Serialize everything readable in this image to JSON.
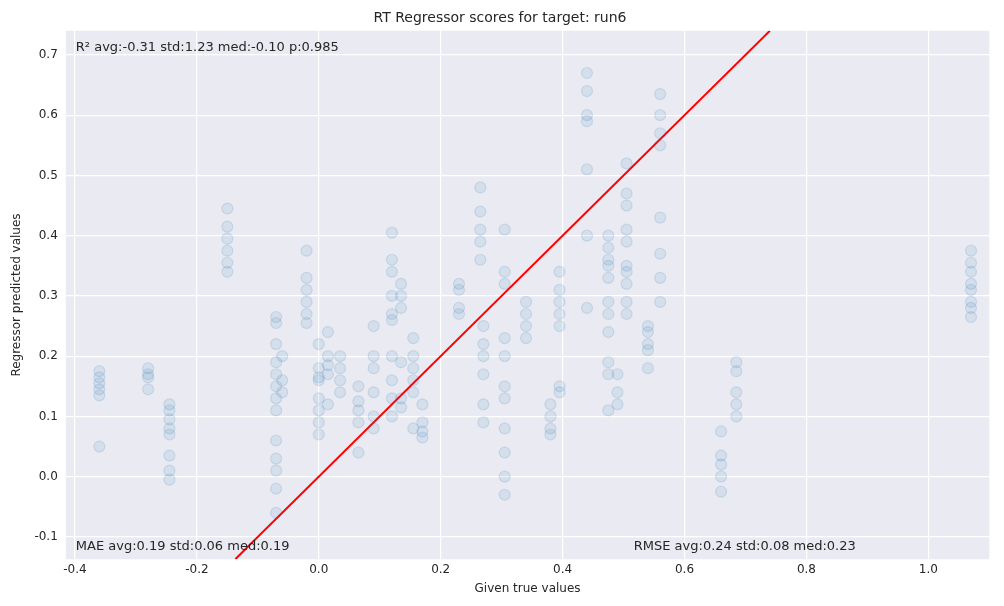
{
  "chart_data": {
    "type": "scatter",
    "title": "RT Regressor scores for target: run6",
    "xlabel": "Given true values",
    "ylabel": "Regressor predicted values",
    "xlim": [
      -0.415,
      1.1
    ],
    "ylim": [
      -0.137,
      0.74
    ],
    "xticks": [
      -0.4,
      -0.2,
      {
        "value": 0,
        "label": "0.0"
      },
      0.2,
      0.4,
      0.6,
      0.8,
      {
        "value": 1,
        "label": "1.0"
      }
    ],
    "yticks": [
      -0.1,
      {
        "value": 0,
        "label": "0.0"
      },
      0.1,
      0.2,
      0.3,
      0.4,
      0.5,
      0.6,
      0.7
    ],
    "grid": true,
    "legend": false,
    "annotations": [
      "R² avg:-0.31 std:1.23 med:-0.10 p:0.985",
      "MAE avg:0.19 std:0.06 med:0.19",
      "RMSE avg:0.24 std:0.08 med:0.23"
    ],
    "series": [
      {
        "type": "scatter",
        "marker": "circle",
        "color": "#1f77b4",
        "x": [
          -0.36,
          -0.36,
          -0.36,
          -0.36,
          -0.36,
          -0.36,
          -0.28,
          -0.28,
          -0.28,
          -0.28,
          -0.245,
          -0.245,
          -0.245,
          -0.245,
          -0.245,
          -0.245,
          -0.245,
          -0.245,
          -0.15,
          -0.15,
          -0.15,
          -0.15,
          -0.15,
          -0.15,
          -0.07,
          -0.07,
          -0.07,
          -0.07,
          -0.07,
          -0.07,
          -0.07,
          -0.07,
          -0.07,
          -0.07,
          -0.07,
          -0.07,
          -0.07,
          -0.06,
          -0.06,
          -0.06,
          -0.02,
          -0.02,
          -0.02,
          -0.02,
          -0.02,
          -0.02,
          0,
          0,
          0,
          0,
          0,
          0,
          0,
          0,
          0.015,
          0.015,
          0.015,
          0.015,
          0.015,
          0.035,
          0.035,
          0.035,
          0.035,
          0.065,
          0.065,
          0.065,
          0.065,
          0.065,
          0.09,
          0.09,
          0.09,
          0.09,
          0.09,
          0.09,
          0.12,
          0.12,
          0.12,
          0.12,
          0.12,
          0.12,
          0.12,
          0.12,
          0.12,
          0.12,
          0.135,
          0.135,
          0.135,
          0.135,
          0.135,
          0.135,
          0.155,
          0.155,
          0.155,
          0.155,
          0.155,
          0.155,
          0.17,
          0.17,
          0.17,
          0.17,
          0.23,
          0.23,
          0.23,
          0.23,
          0.265,
          0.265,
          0.265,
          0.265,
          0.265,
          0.27,
          0.27,
          0.27,
          0.27,
          0.27,
          0.27,
          0.305,
          0.305,
          0.305,
          0.305,
          0.305,
          0.305,
          0.305,
          0.305,
          0.305,
          0.305,
          0.305,
          0.34,
          0.34,
          0.34,
          0.34,
          0.38,
          0.38,
          0.38,
          0.38,
          0.395,
          0.395,
          0.395,
          0.395,
          0.395,
          0.395,
          0.395,
          0.44,
          0.44,
          0.44,
          0.44,
          0.44,
          0.44,
          0.44,
          0.475,
          0.475,
          0.475,
          0.475,
          0.475,
          0.475,
          0.475,
          0.475,
          0.475,
          0.475,
          0.475,
          0.49,
          0.49,
          0.49,
          0.505,
          0.505,
          0.505,
          0.505,
          0.505,
          0.505,
          0.505,
          0.505,
          0.505,
          0.505,
          0.54,
          0.54,
          0.54,
          0.54,
          0.54,
          0.56,
          0.56,
          0.56,
          0.56,
          0.56,
          0.56,
          0.56,
          0.56,
          0.66,
          0.66,
          0.66,
          0.66,
          0.66,
          0.685,
          0.685,
          0.685,
          0.685,
          0.685,
          1.07,
          1.07,
          1.07,
          1.07,
          1.07,
          1.07,
          1.07,
          1.07
        ],
        "values": [
          0.175,
          0.165,
          0.155,
          0.145,
          0.135,
          0.05,
          0.18,
          0.17,
          0.165,
          0.145,
          0.12,
          0.11,
          0.095,
          0.08,
          0.07,
          0.035,
          0.01,
          -0.005,
          0.445,
          0.415,
          0.395,
          0.375,
          0.355,
          0.34,
          0.265,
          0.255,
          0.22,
          0.19,
          0.17,
          0.15,
          0.13,
          0.11,
          0.06,
          0.03,
          0.01,
          -0.02,
          -0.06,
          0.2,
          0.16,
          0.14,
          0.375,
          0.33,
          0.31,
          0.29,
          0.27,
          0.255,
          0.22,
          0.18,
          0.165,
          0.16,
          0.13,
          0.11,
          0.09,
          0.07,
          0.24,
          0.2,
          0.185,
          0.17,
          0.12,
          0.2,
          0.18,
          0.16,
          0.14,
          0.15,
          0.125,
          0.11,
          0.09,
          0.04,
          0.25,
          0.2,
          0.18,
          0.14,
          0.1,
          0.08,
          0.405,
          0.36,
          0.34,
          0.3,
          0.27,
          0.26,
          0.2,
          0.16,
          0.13,
          0.1,
          0.32,
          0.3,
          0.28,
          0.19,
          0.13,
          0.115,
          0.23,
          0.2,
          0.18,
          0.16,
          0.14,
          0.08,
          0.12,
          0.09,
          0.075,
          0.065,
          0.32,
          0.31,
          0.28,
          0.27,
          0.48,
          0.44,
          0.41,
          0.39,
          0.36,
          0.25,
          0.22,
          0.2,
          0.17,
          0.12,
          0.09,
          0.41,
          0.34,
          0.32,
          0.23,
          0.2,
          0.15,
          0.13,
          0.08,
          0.04,
          0,
          -0.03,
          0.29,
          0.27,
          0.25,
          0.23,
          0.12,
          0.1,
          0.08,
          0.07,
          0.34,
          0.31,
          0.29,
          0.27,
          0.25,
          0.15,
          0.14,
          0.67,
          0.64,
          0.6,
          0.59,
          0.51,
          0.4,
          0.28,
          0.4,
          0.38,
          0.36,
          0.35,
          0.33,
          0.29,
          0.27,
          0.24,
          0.19,
          0.17,
          0.11,
          0.17,
          0.14,
          0.12,
          0.52,
          0.47,
          0.45,
          0.41,
          0.39,
          0.35,
          0.34,
          0.32,
          0.29,
          0.27,
          0.25,
          0.24,
          0.22,
          0.21,
          0.18,
          0.635,
          0.6,
          0.57,
          0.55,
          0.43,
          0.37,
          0.33,
          0.29,
          0.075,
          0.035,
          0.02,
          0,
          -0.025,
          0.19,
          0.175,
          0.14,
          0.12,
          0.1,
          0.375,
          0.355,
          0.34,
          0.32,
          0.31,
          0.29,
          0.28,
          0.265
        ]
      },
      {
        "type": "line",
        "color": "#ff0000",
        "x": [
          -0.137,
          0.74
        ],
        "values": [
          -0.137,
          0.74
        ]
      }
    ]
  }
}
